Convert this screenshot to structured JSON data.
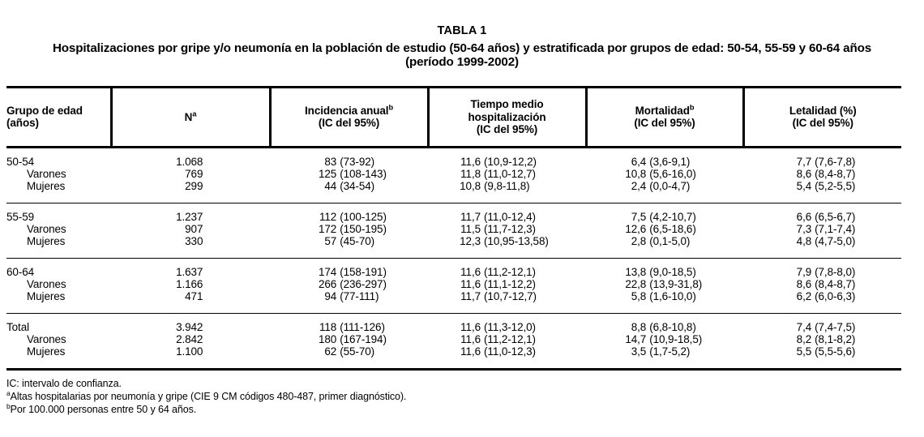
{
  "title": "TABLA 1",
  "subtitle": [
    "Hospitalizaciones por gripe y/o neumonía en la población de estudio (50-64 años) y estratificada por grupos de edad: 50-54, 55-59 y 60-64 años",
    "(período 1999-2002)"
  ],
  "table": {
    "columns": [
      {
        "key": "grupo",
        "lines": [
          {
            "t": "Grupo de edad"
          },
          {
            "t": "(años)"
          }
        ]
      },
      {
        "key": "n",
        "lines": [
          {
            "t": "N",
            "sup": "a"
          }
        ]
      },
      {
        "key": "incidencia",
        "lines": [
          {
            "t": "Incidencia anual",
            "sup": "b"
          },
          {
            "t": "(IC del 95%)"
          }
        ]
      },
      {
        "key": "tiempo",
        "lines": [
          {
            "t": "Tiempo medio"
          },
          {
            "t": "hospitalización"
          },
          {
            "t": "(IC del 95%)"
          }
        ]
      },
      {
        "key": "mortalidad",
        "lines": [
          {
            "t": "Mortalidad",
            "sup": "b"
          },
          {
            "t": "(IC del 95%)"
          }
        ]
      },
      {
        "key": "letalidad",
        "lines": [
          {
            "t": "Letalidad (%)"
          },
          {
            "t": "(IC del 95%)"
          }
        ]
      }
    ],
    "groups": [
      {
        "rows": [
          {
            "label": "50-54",
            "indent": false,
            "cells": [
              "1.068",
              "83 (73-92)",
              "11,6 (10,9-12,2)",
              "6,4 (3,6-9,1)",
              "7,7 (7,6-7,8)"
            ]
          },
          {
            "label": "Varones",
            "indent": true,
            "cells": [
              "769",
              "125 (108-143)",
              "11,8 (11,0-12,7)",
              "10,8 (5,6-16,0)",
              "8,6 (8,4-8,7)"
            ]
          },
          {
            "label": "Mujeres",
            "indent": true,
            "cells": [
              "299",
              "44 (34-54)",
              "10,8 (9,8-11,8)",
              "2,4 (0,0-4,7)",
              "5,4 (5,2-5,5)"
            ]
          }
        ]
      },
      {
        "rows": [
          {
            "label": "55-59",
            "indent": false,
            "cells": [
              "1.237",
              "112 (100-125)",
              "11,7 (11,0-12,4)",
              "7,5 (4,2-10,7)",
              "6,6 (6,5-6,7)"
            ]
          },
          {
            "label": "Varones",
            "indent": true,
            "cells": [
              "907",
              "172 (150-195)",
              "11,5 (11,7-12,3)",
              "12,6 (6,5-18,6)",
              "7,3 (7,1-7,4)"
            ]
          },
          {
            "label": "Mujeres",
            "indent": true,
            "cells": [
              "330",
              "57 (45-70)",
              "12,3 (10,95-13,58)",
              "2,8 (0,1-5,0)",
              "4,8 (4,7-5,0)"
            ]
          }
        ]
      },
      {
        "rows": [
          {
            "label": "60-64",
            "indent": false,
            "cells": [
              "1.637",
              "174 (158-191)",
              "11,6 (11,2-12,1)",
              "13,8 (9,0-18,5)",
              "7,9 (7,8-8,0)"
            ]
          },
          {
            "label": "Varones",
            "indent": true,
            "cells": [
              "1.166",
              "266 (236-297)",
              "11,6 (11,1-12,2)",
              "22,8 (13,9-31,8)",
              "8,6 (8,4-8,7)"
            ]
          },
          {
            "label": "Mujeres",
            "indent": true,
            "cells": [
              "471",
              "94 (77-111)",
              "11,7 (10,7-12,7)",
              "5,8 (1,6-10,0)",
              "6,2 (6,0-6,3)"
            ]
          }
        ]
      },
      {
        "rows": [
          {
            "label": "Total",
            "indent": false,
            "cells": [
              "3.942",
              "118 (111-126)",
              "11,6 (11,3-12,0)",
              "8,8 (6,8-10,8)",
              "7,4 (7,4-7,5)"
            ]
          },
          {
            "label": "Varones",
            "indent": true,
            "cells": [
              "2.842",
              "180 (167-194)",
              "11,6 (11,2-12,1)",
              "14,7 (10,9-18,5)",
              "8,2 (8,1-8,2)"
            ]
          },
          {
            "label": "Mujeres",
            "indent": true,
            "cells": [
              "1.100",
              "62 (55-70)",
              "11,6 (11,0-12,3)",
              "3,5 (1,7-5,2)",
              "5,5 (5,5-5,6)"
            ]
          }
        ]
      }
    ]
  },
  "footnotes": [
    {
      "sup": "",
      "text": "IC: intervalo de confianza."
    },
    {
      "sup": "a",
      "text": "Altas hospitalarias por neumonía y gripe (CIE 9 CM códigos 480-487, primer diagnóstico)."
    },
    {
      "sup": "b",
      "text": "Por 100.000 personas entre 50 y 64 años."
    }
  ],
  "colors": {
    "text": "#000000",
    "background": "#ffffff",
    "rule": "#000000"
  }
}
